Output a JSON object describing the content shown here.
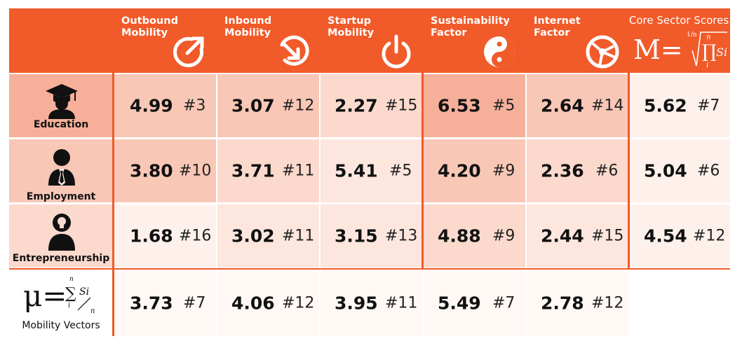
{
  "header": {
    "columns": [
      {
        "label": "Outbound\nMobility",
        "icon": "outbound-arrow-icon"
      },
      {
        "label": "Inbound\nMobility",
        "icon": "inbound-arrow-icon"
      },
      {
        "label": "Startup\nMobility",
        "icon": "power-icon"
      },
      {
        "label": "Sustainability\nFactor",
        "icon": "yin-yang-icon"
      },
      {
        "label": "Internet\nFactor",
        "icon": "globe-network-icon"
      }
    ],
    "core_title": "Core Sector Scores",
    "core_formula": "M=",
    "core_formula_root": "1/n",
    "core_formula_prod_top": "n",
    "core_formula_prod_bottom": "i",
    "core_formula_term": "Si"
  },
  "rows": [
    {
      "label": "Education",
      "icon": "graduate-icon",
      "cells": [
        {
          "value": "4.99",
          "rank": "#3"
        },
        {
          "value": "3.07",
          "rank": "#12"
        },
        {
          "value": "2.27",
          "rank": "#15"
        },
        {
          "value": "6.53",
          "rank": "#5"
        },
        {
          "value": "2.64",
          "rank": "#14"
        },
        {
          "value": "5.62",
          "rank": "#7"
        }
      ]
    },
    {
      "label": "Employment",
      "icon": "businessman-icon",
      "cells": [
        {
          "value": "3.80",
          "rank": "#10"
        },
        {
          "value": "3.71",
          "rank": "#11"
        },
        {
          "value": "5.41",
          "rank": "#5"
        },
        {
          "value": "4.20",
          "rank": "#9"
        },
        {
          "value": "2.36",
          "rank": "#6"
        },
        {
          "value": "5.04",
          "rank": "#6"
        }
      ]
    },
    {
      "label": "Entrepreneurship",
      "icon": "entrepreneur-lightbulb-icon",
      "cells": [
        {
          "value": "1.68",
          "rank": "#16"
        },
        {
          "value": "3.02",
          "rank": "#11"
        },
        {
          "value": "3.15",
          "rank": "#13"
        },
        {
          "value": "4.88",
          "rank": "#9"
        },
        {
          "value": "2.44",
          "rank": "#15"
        },
        {
          "value": "4.54",
          "rank": "#12"
        }
      ]
    }
  ],
  "mobility_vectors": {
    "label": "Mobility Vectors",
    "formula_mu": "μ=",
    "formula_sum_top": "n",
    "formula_sum_bottom": "i",
    "formula_term": "Si",
    "formula_divisor": "n",
    "cells": [
      {
        "value": "3.73",
        "rank": "#7"
      },
      {
        "value": "4.06",
        "rank": "#12"
      },
      {
        "value": "3.95",
        "rank": "#11"
      },
      {
        "value": "5.49",
        "rank": "#7"
      },
      {
        "value": "2.78",
        "rank": "#12"
      }
    ]
  },
  "colors": {
    "accent": "#f15a29",
    "shade_1": "#f6b09a",
    "shade_2": "#f9c7b6",
    "shade_3": "#fbd9cd",
    "shade_4": "#fde6de",
    "shade_5": "#fef1ec",
    "shade_6": "#fff8f5"
  }
}
